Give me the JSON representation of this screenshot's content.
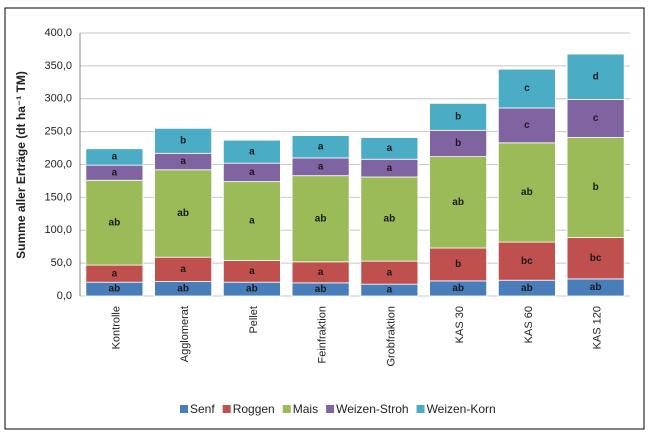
{
  "chart_data": {
    "type": "stacked-bar",
    "y_label": "Summe aller Erträge (dt ha⁻¹ TM)",
    "categories": [
      "Kontrolle",
      "Agglomerat",
      "Pellet",
      "Feinfraktion",
      "Grobfraktion",
      "KAS 30",
      "KAS 60",
      "KAS 120"
    ],
    "series": [
      {
        "name": "Senf",
        "color": "#4a7ebb",
        "values": [
          21,
          22,
          21,
          20,
          18,
          23,
          24,
          26
        ],
        "labels": [
          "ab",
          "ab",
          "ab",
          "ab",
          "a",
          "ab",
          "ab",
          "ab"
        ]
      },
      {
        "name": "Roggen",
        "color": "#c0504d",
        "values": [
          26,
          37,
          33,
          32,
          35,
          50,
          58,
          63
        ],
        "labels": [
          "a",
          "a",
          "a",
          "a",
          "a",
          "b",
          "bc",
          "bc"
        ]
      },
      {
        "name": "Mais",
        "color": "#9bbb59",
        "values": [
          129,
          133,
          120,
          131,
          128,
          139,
          151,
          152
        ],
        "labels": [
          "ab",
          "ab",
          "a",
          "ab",
          "ab",
          "ab",
          "ab",
          "b"
        ]
      },
      {
        "name": "Weizen-Stroh",
        "color": "#8064a2",
        "values": [
          23,
          25,
          28,
          27,
          27,
          40,
          53,
          58
        ],
        "labels": [
          "a",
          "a",
          "a",
          "a",
          "a",
          "b",
          "c",
          "c"
        ]
      },
      {
        "name": "Weizen-Korn",
        "color": "#4bacc6",
        "values": [
          25,
          38,
          35,
          34,
          33,
          41,
          59,
          69
        ],
        "labels": [
          "a",
          "b",
          "a",
          "a",
          "a",
          "b",
          "c",
          "d"
        ]
      }
    ],
    "ylim": [
      0,
      400
    ],
    "yticks": [
      {
        "value": 0,
        "label": "0,0"
      },
      {
        "value": 50,
        "label": "50,0"
      },
      {
        "value": 100,
        "label": "100,0"
      },
      {
        "value": 150,
        "label": "150,0"
      },
      {
        "value": 200,
        "label": "200,0"
      },
      {
        "value": 250,
        "label": "250,0"
      },
      {
        "value": 300,
        "label": "300,0"
      },
      {
        "value": 350,
        "label": "350,0"
      },
      {
        "value": 400,
        "label": "400,0"
      }
    ],
    "grid": true
  }
}
